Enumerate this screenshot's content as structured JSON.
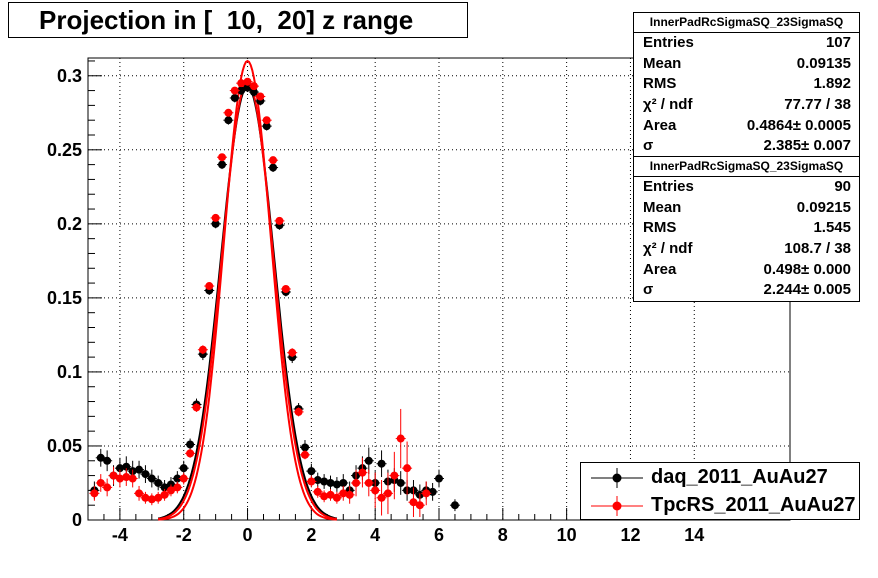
{
  "title": "Projection in [  10,  20] z range",
  "stats_boxes": [
    {
      "name": "InnerPadRcSigmaSQ_23SigmaSQ",
      "rows": [
        {
          "label": "Entries",
          "value": "107"
        },
        {
          "label": "Mean",
          "value": "0.09135"
        },
        {
          "label": "RMS",
          "value": "1.892"
        },
        {
          "label": "χ² / ndf",
          "value": "77.77 / 38"
        },
        {
          "label": "Area",
          "value": "0.4864± 0.0005"
        },
        {
          "label": "σ",
          "value": "2.385± 0.007"
        }
      ]
    },
    {
      "name": "InnerPadRcSigmaSQ_23SigmaSQ",
      "rows": [
        {
          "label": "Entries",
          "value": "90"
        },
        {
          "label": "Mean",
          "value": "0.09215"
        },
        {
          "label": "RMS",
          "value": "1.545"
        },
        {
          "label": "χ² / ndf",
          "value": "108.7 / 38"
        },
        {
          "label": "Area",
          "value": "0.498± 0.000"
        },
        {
          "label": "σ",
          "value": "2.244± 0.005"
        }
      ]
    }
  ],
  "legend": [
    {
      "label": "daq_2011_AuAu27",
      "color": "#000000"
    },
    {
      "label": "TpcRS_2011_AuAu27",
      "color": "#ff0000"
    }
  ],
  "chart_data": {
    "type": "scatter",
    "title": "Projection in [  10,  20] z range",
    "xlim": [
      -5.0,
      17.0
    ],
    "ylim": [
      0,
      0.312
    ],
    "x_ticks": [
      -4,
      -2,
      0,
      2,
      4,
      6,
      8,
      10,
      12,
      14
    ],
    "y_ticks": [
      0,
      0.05,
      0.1,
      0.15,
      0.2,
      0.25,
      0.3
    ],
    "y_tick_labels": [
      "0",
      "0.05",
      "0.1",
      "0.15",
      "0.2",
      "0.25",
      "0.3"
    ],
    "grid": true,
    "legend_position": "bottom-right",
    "series": [
      {
        "name": "daq_2011_AuAu27",
        "color": "#000000",
        "x": [
          -4.8,
          -4.6,
          -4.4,
          -4.2,
          -4.0,
          -3.8,
          -3.6,
          -3.4,
          -3.2,
          -3.0,
          -2.8,
          -2.6,
          -2.4,
          -2.2,
          -2.0,
          -1.8,
          -1.6,
          -1.4,
          -1.2,
          -1.0,
          -0.8,
          -0.6,
          -0.4,
          -0.2,
          0.0,
          0.2,
          0.4,
          0.6,
          0.8,
          1.0,
          1.2,
          1.4,
          1.6,
          1.8,
          2.0,
          2.2,
          2.4,
          2.6,
          2.8,
          3.0,
          3.2,
          3.4,
          3.6,
          3.8,
          4.0,
          4.2,
          4.4,
          4.6,
          4.8,
          5.0,
          5.2,
          5.4,
          5.6,
          5.8,
          6.0,
          6.5
        ],
        "y": [
          0.02,
          0.042,
          0.04,
          0.03,
          0.035,
          0.036,
          0.033,
          0.034,
          0.031,
          0.028,
          0.025,
          0.022,
          0.024,
          0.028,
          0.035,
          0.051,
          0.078,
          0.112,
          0.155,
          0.2,
          0.24,
          0.27,
          0.285,
          0.29,
          0.292,
          0.289,
          0.283,
          0.266,
          0.238,
          0.199,
          0.154,
          0.11,
          0.075,
          0.049,
          0.033,
          0.027,
          0.026,
          0.025,
          0.024,
          0.025,
          0.02,
          0.03,
          0.035,
          0.04,
          0.025,
          0.038,
          0.026,
          0.027,
          0.025,
          0.02,
          0.02,
          0.017,
          0.02,
          0.019,
          0.028,
          0.01
        ],
        "err": [
          0.006,
          0.006,
          0.007,
          0.007,
          0.007,
          0.007,
          0.007,
          0.006,
          0.006,
          0.006,
          0.005,
          0.005,
          0.005,
          0.005,
          0.005,
          0.004,
          0.004,
          0.004,
          0.003,
          0.003,
          0.003,
          0.003,
          0.003,
          0.003,
          0.003,
          0.003,
          0.003,
          0.003,
          0.003,
          0.003,
          0.003,
          0.004,
          0.004,
          0.005,
          0.005,
          0.005,
          0.005,
          0.005,
          0.005,
          0.006,
          0.006,
          0.007,
          0.008,
          0.009,
          0.008,
          0.009,
          0.008,
          0.008,
          0.008,
          0.007,
          0.007,
          0.007,
          0.006,
          0.006,
          0.006,
          0.004
        ]
      },
      {
        "name": "TpcRS_2011_AuAu27",
        "color": "#ff0000",
        "x": [
          -4.8,
          -4.6,
          -4.4,
          -4.2,
          -4.0,
          -3.8,
          -3.6,
          -3.4,
          -3.2,
          -3.0,
          -2.8,
          -2.6,
          -2.4,
          -2.2,
          -2.0,
          -1.8,
          -1.6,
          -1.4,
          -1.2,
          -1.0,
          -0.8,
          -0.6,
          -0.4,
          -0.2,
          0.0,
          0.2,
          0.4,
          0.6,
          0.8,
          1.0,
          1.2,
          1.4,
          1.6,
          1.8,
          2.0,
          2.2,
          2.4,
          2.6,
          2.8,
          3.0,
          3.2,
          3.4,
          3.6,
          3.8,
          4.0,
          4.2,
          4.4,
          4.6,
          4.8,
          5.0,
          5.2,
          5.4,
          5.6
        ],
        "y": [
          0.018,
          0.025,
          0.022,
          0.03,
          0.028,
          0.029,
          0.028,
          0.018,
          0.015,
          0.014,
          0.015,
          0.017,
          0.02,
          0.022,
          0.028,
          0.045,
          0.076,
          0.115,
          0.158,
          0.204,
          0.245,
          0.275,
          0.29,
          0.295,
          0.296,
          0.293,
          0.286,
          0.27,
          0.243,
          0.202,
          0.156,
          0.113,
          0.073,
          0.044,
          0.026,
          0.019,
          0.016,
          0.017,
          0.015,
          0.018,
          0.017,
          0.025,
          0.032,
          0.025,
          0.02,
          0.015,
          0.018,
          0.03,
          0.055,
          0.035,
          0.012,
          0.01,
          0.018
        ],
        "err": [
          0.005,
          0.006,
          0.006,
          0.006,
          0.006,
          0.006,
          0.006,
          0.005,
          0.004,
          0.004,
          0.004,
          0.004,
          0.004,
          0.004,
          0.004,
          0.003,
          0.003,
          0.003,
          0.002,
          0.002,
          0.002,
          0.002,
          0.002,
          0.002,
          0.002,
          0.002,
          0.002,
          0.002,
          0.002,
          0.002,
          0.002,
          0.003,
          0.003,
          0.003,
          0.004,
          0.004,
          0.004,
          0.004,
          0.004,
          0.005,
          0.006,
          0.009,
          0.01,
          0.009,
          0.012,
          0.012,
          0.014,
          0.016,
          0.02,
          0.018,
          0.01,
          0.008,
          0.008
        ]
      }
    ],
    "fits": [
      {
        "name": "daq_2011_AuAu27 fit",
        "color": "#000000",
        "amplitude": 0.293,
        "sigma": 0.83
      },
      {
        "name": "TpcRS_2011_AuAu27 fit",
        "color": "#ff0000",
        "amplitude": 0.296,
        "sigma": 0.8
      },
      {
        "name": "TpcRS_2011_AuAu27 fit 2",
        "color": "#ff0000",
        "amplitude": 0.31,
        "sigma": 0.74
      }
    ]
  }
}
